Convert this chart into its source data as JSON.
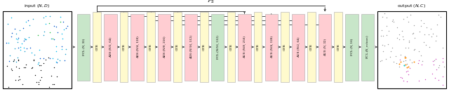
{
  "input_label": "input $(N, D)$",
  "output_label": "output $(N, C)$",
  "ps_label": "$\\mathcal{P}_S$",
  "blocks": [
    {
      "label": "FCL (N, 32)",
      "color": "#c8e6c9",
      "type": "fcl"
    },
    {
      "label": "GTB",
      "color": "#fffacd",
      "type": "gtb"
    },
    {
      "label": "ADS (N/2, 64)",
      "color": "#ffcdd2",
      "type": "ads"
    },
    {
      "label": "GTB",
      "color": "#fffacd",
      "type": "gtb"
    },
    {
      "label": "ADS (N/4, 128)",
      "color": "#ffcdd2",
      "type": "ads"
    },
    {
      "label": "GTB",
      "color": "#fffacd",
      "type": "gtb"
    },
    {
      "label": "ADS (N/8, 256)",
      "color": "#ffcdd2",
      "type": "ads"
    },
    {
      "label": "GTB",
      "color": "#fffacd",
      "type": "gtb"
    },
    {
      "label": "ADS (N/16, 512)",
      "color": "#ffcdd2",
      "type": "ads"
    },
    {
      "label": "GTB",
      "color": "#fffacd",
      "type": "gtb"
    },
    {
      "label": "FCL (N/16, 512)",
      "color": "#c8e6c9",
      "type": "fcl"
    },
    {
      "label": "GTB",
      "color": "#fffacd",
      "type": "gtb"
    },
    {
      "label": "AUS (N/8, 256)",
      "color": "#ffcdd2",
      "type": "aus"
    },
    {
      "label": "GTB",
      "color": "#fffacd",
      "type": "gtb"
    },
    {
      "label": "AUS (N/4, 128)",
      "color": "#ffcdd2",
      "type": "aus"
    },
    {
      "label": "GTB",
      "color": "#fffacd",
      "type": "gtb"
    },
    {
      "label": "AUS (N/2, 64)",
      "color": "#ffcdd2",
      "type": "aus"
    },
    {
      "label": "GTB",
      "color": "#fffacd",
      "type": "gtb"
    },
    {
      "label": "AUS (N, 32)",
      "color": "#ffcdd2",
      "type": "aus"
    },
    {
      "label": "GTB",
      "color": "#fffacd",
      "type": "gtb"
    },
    {
      "label": "FCL (N, 16)",
      "color": "#c8e6c9",
      "type": "fcl"
    },
    {
      "label": "FCL (N, $n_{classes}$)",
      "color": "#c8e6c9",
      "type": "fcl"
    }
  ],
  "skip_connections": [
    {
      "from": 1,
      "to": 12
    },
    {
      "from": 3,
      "to": 14
    },
    {
      "from": 5,
      "to": 16
    },
    {
      "from": 7,
      "to": 18
    }
  ],
  "ps_connection": {
    "from": 1,
    "to": 18
  },
  "arrow_color": "#333333",
  "line_color": "#333333"
}
